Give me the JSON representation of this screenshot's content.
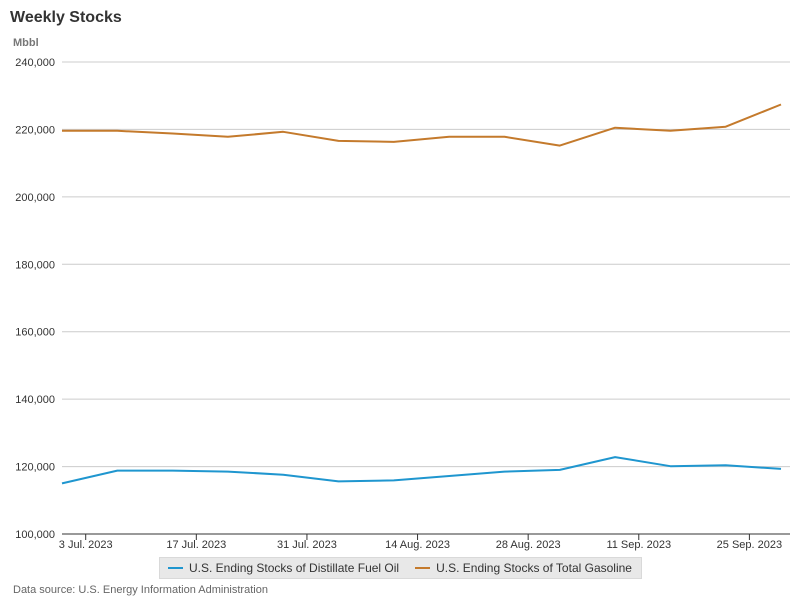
{
  "header": {
    "title": "Weekly Stocks",
    "unit": "Mbbl"
  },
  "source": "Data source: U.S. Energy Information Administration",
  "chart_data": {
    "type": "line",
    "title": "Weekly Stocks",
    "ylabel": "Mbbl",
    "xlabel": "",
    "ylim": [
      100000,
      240000
    ],
    "y_ticks": [
      100000,
      120000,
      140000,
      160000,
      180000,
      200000,
      220000,
      240000
    ],
    "y_tick_labels": [
      "100,000",
      "120,000",
      "140,000",
      "160,000",
      "180,000",
      "200,000",
      "220,000",
      "240,000"
    ],
    "x": [
      "2023-06-30",
      "2023-07-07",
      "2023-07-14",
      "2023-07-21",
      "2023-07-28",
      "2023-08-04",
      "2023-08-11",
      "2023-08-18",
      "2023-08-25",
      "2023-09-01",
      "2023-09-08",
      "2023-09-15",
      "2023-09-22",
      "2023-09-29"
    ],
    "x_tick_positions": [
      "2023-07-03",
      "2023-07-17",
      "2023-07-31",
      "2023-08-14",
      "2023-08-28",
      "2023-09-11",
      "2023-09-25"
    ],
    "x_tick_labels": [
      "3 Jul. 2023",
      "17 Jul. 2023",
      "31 Jul. 2023",
      "14 Aug. 2023",
      "28 Aug. 2023",
      "11 Sep. 2023",
      "25 Sep. 2023"
    ],
    "grid": "horizontal",
    "legend_position": "bottom",
    "series": [
      {
        "name": "U.S. Ending Stocks of Distillate Fuel Oil",
        "color": "#1f96cf",
        "values": [
          115000,
          118800,
          118800,
          118500,
          117600,
          115600,
          115900,
          117200,
          118500,
          119000,
          122800,
          120100,
          120400,
          119300
        ]
      },
      {
        "name": "U.S. Ending Stocks of Total Gasoline",
        "color": "#c47a2c",
        "values": [
          219600,
          219600,
          218800,
          217800,
          219300,
          216600,
          216300,
          217800,
          217800,
          215200,
          220500,
          219600,
          220800,
          227400
        ]
      }
    ]
  }
}
